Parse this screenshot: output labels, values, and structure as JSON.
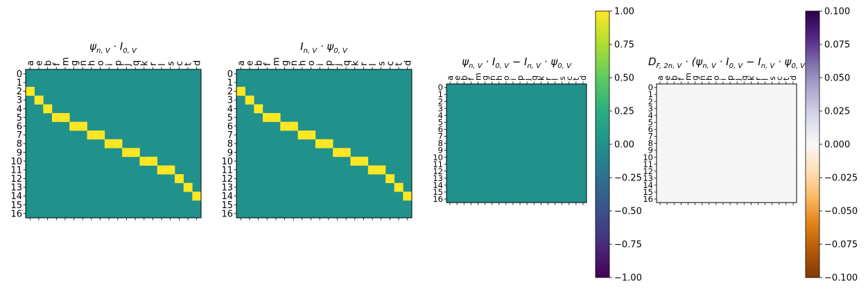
{
  "chart_data": [
    {
      "type": "heatmap",
      "title": "ψn,V · I0,V",
      "xticklabels": [
        "a",
        "e",
        "b",
        "f",
        "m",
        "g",
        "n",
        "h",
        "o",
        "i",
        "p",
        "j",
        "q",
        "k",
        "r",
        "l",
        "s",
        "c",
        "t",
        "d"
      ],
      "yticklabels": [
        "0",
        "1",
        "2",
        "3",
        "4",
        "5",
        "6",
        "7",
        "8",
        "9",
        "10",
        "11",
        "12",
        "13",
        "14",
        "15",
        "16"
      ],
      "cmap": "viridis",
      "vmin": -1,
      "vmax": 1,
      "default_value": 0,
      "highlighted_cells": [
        {
          "row": 2,
          "cols": [
            0
          ]
        },
        {
          "row": 3,
          "cols": [
            1
          ]
        },
        {
          "row": 4,
          "cols": [
            2
          ]
        },
        {
          "row": 5,
          "cols": [
            3,
            4
          ]
        },
        {
          "row": 6,
          "cols": [
            5,
            6
          ]
        },
        {
          "row": 7,
          "cols": [
            7,
            8
          ]
        },
        {
          "row": 8,
          "cols": [
            9,
            10
          ]
        },
        {
          "row": 9,
          "cols": [
            11,
            12
          ]
        },
        {
          "row": 10,
          "cols": [
            13,
            14
          ]
        },
        {
          "row": 11,
          "cols": [
            15,
            16
          ]
        },
        {
          "row": 12,
          "cols": [
            17
          ]
        },
        {
          "row": 13,
          "cols": [
            18
          ]
        },
        {
          "row": 14,
          "cols": [
            19
          ]
        }
      ],
      "highlight_value": 1
    },
    {
      "type": "heatmap",
      "title": "In,V · ψ0,V",
      "xticklabels": [
        "a",
        "e",
        "b",
        "f",
        "m",
        "g",
        "n",
        "h",
        "o",
        "i",
        "p",
        "j",
        "q",
        "k",
        "r",
        "l",
        "s",
        "c",
        "t",
        "d"
      ],
      "yticklabels": [
        "0",
        "1",
        "2",
        "3",
        "4",
        "5",
        "6",
        "7",
        "8",
        "9",
        "10",
        "11",
        "12",
        "13",
        "14",
        "15",
        "16"
      ],
      "cmap": "viridis",
      "vmin": -1,
      "vmax": 1,
      "default_value": 0,
      "highlighted_cells": [
        {
          "row": 2,
          "cols": [
            0
          ]
        },
        {
          "row": 3,
          "cols": [
            1
          ]
        },
        {
          "row": 4,
          "cols": [
            2
          ]
        },
        {
          "row": 5,
          "cols": [
            3,
            4
          ]
        },
        {
          "row": 6,
          "cols": [
            5,
            6
          ]
        },
        {
          "row": 7,
          "cols": [
            7,
            8
          ]
        },
        {
          "row": 8,
          "cols": [
            9,
            10
          ]
        },
        {
          "row": 9,
          "cols": [
            11,
            12
          ]
        },
        {
          "row": 10,
          "cols": [
            13,
            14
          ]
        },
        {
          "row": 11,
          "cols": [
            15,
            16
          ]
        },
        {
          "row": 12,
          "cols": [
            17
          ]
        },
        {
          "row": 13,
          "cols": [
            18
          ]
        },
        {
          "row": 14,
          "cols": [
            19
          ]
        }
      ],
      "highlight_value": 1
    },
    {
      "type": "heatmap",
      "title": "ψn,V · I0,V − In,V · ψ0,V",
      "xticklabels": [
        "a",
        "e",
        "b",
        "f",
        "m",
        "g",
        "n",
        "h",
        "o",
        "i",
        "p",
        "j",
        "q",
        "k",
        "r",
        "l",
        "s",
        "c",
        "t",
        "d"
      ],
      "yticklabels": [
        "0",
        "1",
        "2",
        "3",
        "4",
        "5",
        "6",
        "7",
        "8",
        "9",
        "10",
        "11",
        "12",
        "13",
        "14",
        "15",
        "16"
      ],
      "cmap": "viridis",
      "vmin": -1,
      "vmax": 1,
      "default_value": 0,
      "highlighted_cells": [],
      "colorbar": {
        "ticks": [
          "1.00",
          "0.75",
          "0.50",
          "0.25",
          "0.00",
          "−0.25",
          "−0.50",
          "−0.75",
          "−1.00"
        ]
      }
    },
    {
      "type": "heatmap",
      "title": "DF,2n,V · (ψn,V · I0,V − In,V · ψ0,V",
      "xticklabels": [
        "a",
        "e",
        "b",
        "f",
        "m",
        "g",
        "n",
        "h",
        "o",
        "i",
        "p",
        "j",
        "q",
        "k",
        "r",
        "l",
        "s",
        "c",
        "t",
        "d"
      ],
      "yticklabels": [
        "0",
        "1",
        "2",
        "3",
        "4",
        "5",
        "6",
        "7",
        "8",
        "9",
        "10",
        "11",
        "12",
        "13",
        "14",
        "15",
        "16"
      ],
      "cmap": "PuOr",
      "vmin": -0.1,
      "vmax": 0.1,
      "default_value": 0,
      "highlighted_cells": [],
      "colorbar": {
        "ticks": [
          "0.100",
          "0.075",
          "0.050",
          "0.025",
          "0.000",
          "−0.025",
          "−0.050",
          "−0.075",
          "−0.100"
        ]
      }
    }
  ],
  "colors": {
    "viridis_zero": "#21918c",
    "viridis_one": "#fde725",
    "puor_zero": "#f5f5f5"
  }
}
